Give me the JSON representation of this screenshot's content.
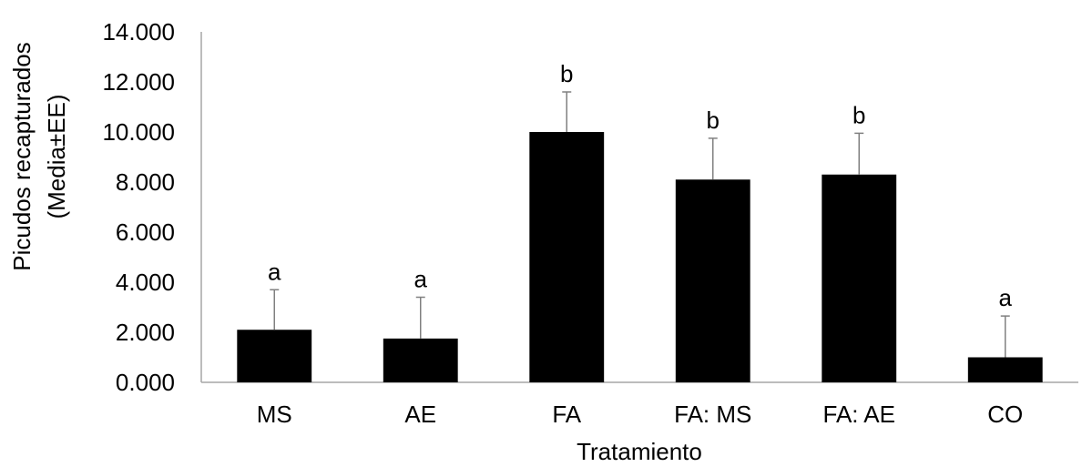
{
  "chart_data": {
    "type": "bar",
    "categories": [
      "MS",
      "AE",
      "FA",
      "FA: MS",
      "FA: AE",
      "CO"
    ],
    "values": [
      2.1,
      1.75,
      10.0,
      8.1,
      8.3,
      1.0
    ],
    "error": [
      1.6,
      1.65,
      1.6,
      1.65,
      1.65,
      1.65
    ],
    "significance": [
      "a",
      "a",
      "b",
      "b",
      "b",
      "a"
    ],
    "y_ticks": [
      "0.000",
      "2.000",
      "4.000",
      "6.000",
      "8.000",
      "10.000",
      "12.000",
      "14.000"
    ],
    "ylim": [
      0,
      14
    ],
    "xlabel": "Tratamiento",
    "ylabel_line1": "Picudos recapturados",
    "ylabel_line2": "(Media±EE)",
    "bar_color": "#000000",
    "error_bar_color": "#808080",
    "grid": false
  }
}
